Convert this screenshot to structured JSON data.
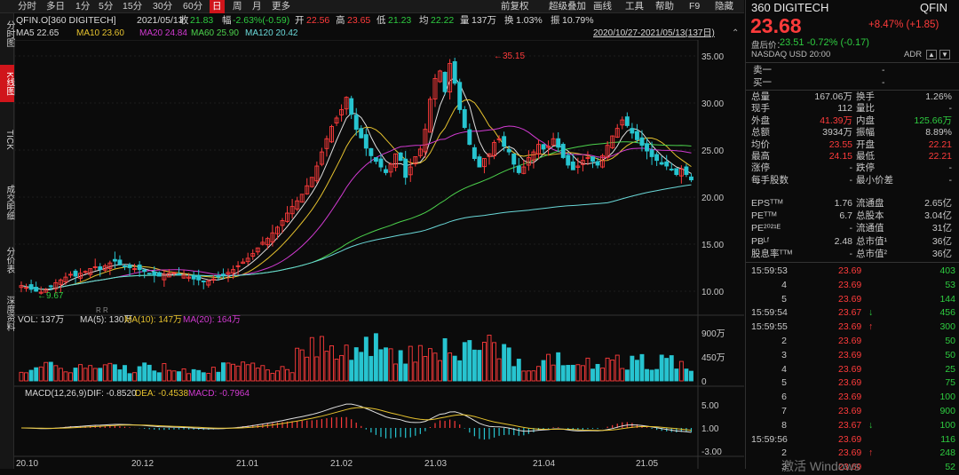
{
  "tabs": [
    "分时",
    "多日",
    "1分",
    "5分",
    "15分",
    "30分",
    "60分",
    "日",
    "周",
    "月",
    "更多"
  ],
  "active_tab": "日",
  "toolbar": [
    "前复权",
    "超级叠加",
    "画线",
    "工具",
    "帮助",
    "F9",
    "隐藏"
  ],
  "side_tabs": [
    "分时图",
    "K线图",
    "TICK",
    "成交明细",
    "分价表",
    "深度资料"
  ],
  "info": {
    "code": "QFIN.O[360 DIGITECH]",
    "date": "2021/05/13",
    "shou_l": "收",
    "shou": "21.83",
    "fu_l": "幅",
    "fu": "-2.63%(-0.59)",
    "kai_l": "开",
    "kai": "22.56",
    "gao_l": "高",
    "gao": "23.65",
    "di_l": "低",
    "di": "21.23",
    "jun_l": "均",
    "jun": "22.22",
    "liang_l": "量",
    "liang": "137万",
    "huan_l": "换",
    "huan": "1.03%",
    "zhen_l": "振",
    "zhen": "10.79%"
  },
  "ma": {
    "ma5": "MA5 22.65",
    "ma10": "MA10 23.60",
    "ma20": "MA20 24.84",
    "ma60": "MA60 25.90",
    "ma120": "MA120 20.42",
    "range": "2020/10/27-2021/05/13(137日)"
  },
  "vol": {
    "label": "VOL: 137万",
    "ma5": "MA(5): 130万",
    "ma10": "MA(10): 147万",
    "ma20": "MA(20): 164万"
  },
  "macd": {
    "label": "MACD(12,26,9)",
    "dif": "DIF: -0.8520",
    "dea": "DEA: -0.4538",
    "macd": "MACD: -0.7964"
  },
  "chart_data": {
    "type": "candlestick",
    "price_ticks": [
      "35.00",
      "30.00",
      "25.00",
      "20.00",
      "15.00",
      "10.00"
    ],
    "vol_ticks": [
      "900万",
      "450万",
      "0"
    ],
    "macd_ticks": [
      "5.00",
      "1.00",
      "-3.00"
    ],
    "date_ticks": [
      "20.10",
      "20.12",
      "21.01",
      "21.02",
      "21.03",
      "21.04",
      "21.05"
    ],
    "annotations": {
      "max": "35.15",
      "min": "9.67"
    },
    "closes": [
      10.6,
      10.4,
      10.2,
      10.0,
      9.9,
      10.2,
      10.5,
      10.9,
      11.2,
      11.5,
      11.8,
      11.6,
      11.9,
      12.1,
      12.4,
      12.6,
      12.3,
      12.7,
      13.0,
      13.2,
      12.8,
      12.6,
      12.5,
      12.4,
      12.3,
      12.1,
      11.9,
      11.7,
      11.6,
      11.8,
      11.9,
      12.0,
      11.8,
      11.7,
      11.5,
      11.3,
      11.2,
      11.0,
      11.1,
      11.3,
      11.5,
      11.7,
      12.0,
      12.3,
      12.7,
      13.1,
      13.5,
      14.0,
      14.6,
      15.2,
      15.6,
      16.2,
      16.8,
      17.5,
      18.3,
      19.0,
      19.6,
      20.3,
      21.2,
      22.1,
      23.3,
      24.8,
      26.2,
      27.5,
      28.4,
      29.3,
      30.6,
      28.8,
      27.2,
      26.3,
      25.2,
      24.4,
      23.8,
      23.2,
      22.6,
      23.5,
      24.6,
      23.9,
      22.1,
      23.2,
      24.3,
      25.1,
      27.2,
      30.4,
      32.6,
      33.4,
      31.2,
      34.2,
      32.1,
      29.3,
      27.4,
      25.6,
      24.1,
      23.2,
      24.1,
      24.6,
      25.8,
      26.2,
      25.4,
      24.8,
      23.5,
      22.6,
      23.2,
      24.2,
      24.8,
      25.6,
      25.1,
      25.4,
      26.2,
      25.3,
      24.2,
      23.4,
      22.9,
      23.3,
      23.9,
      24.2,
      23.8,
      23.4,
      24.4,
      25.5,
      26.5,
      27.3,
      28.2,
      27.6,
      26.8,
      26.1,
      25.5,
      24.9,
      24.3,
      23.9,
      23.5,
      23.3,
      22.9,
      22.4,
      23.0,
      22.4,
      21.83
    ],
    "ma_values": {
      "MA5": 22.65,
      "MA10": 23.6,
      "MA20": 24.84,
      "MA60": 25.9,
      "MA120": 20.42
    }
  },
  "right": {
    "name": "360 DIGITECH",
    "ticker": "QFIN",
    "price": "23.68",
    "change": "+8.47% (+1.85)",
    "after_label": "盘后价：",
    "after": "23.51 -0.72% (-0.17)",
    "market": "NASDAQ  USD  20:00",
    "adr": "ADR",
    "sell_label": "卖一",
    "sell": "-",
    "buy_label": "买一",
    "buy": "-",
    "stats": [
      [
        "总量",
        "167.06万",
        "换手",
        "1.26%"
      ],
      [
        "现手",
        "112",
        "量比",
        "-"
      ],
      [
        "外盘",
        "41.39万",
        "内盘",
        "125.66万"
      ],
      [
        "总额",
        "3934万",
        "振幅",
        "8.89%"
      ],
      [
        "均价",
        "23.55",
        "开盘",
        "22.21"
      ],
      [
        "最高",
        "24.15",
        "最低",
        "22.21"
      ],
      [
        "涨停",
        "-",
        "跌停",
        "-"
      ],
      [
        "每手股数",
        "-",
        "最小价差",
        "-"
      ]
    ],
    "fund": [
      [
        "EPSᵀᵀᴹ",
        "1.76",
        "流通盘",
        "2.65亿"
      ],
      [
        "PEᵀᵀᴹ",
        "6.7",
        "总股本",
        "3.04亿"
      ],
      [
        "PE²⁰²¹ᴱ",
        "-",
        "流通值",
        "31亿"
      ],
      [
        "PBᴸᶠ",
        "2.48",
        "总市值¹",
        "36亿"
      ],
      [
        "股息率ᵀᵀᴹ",
        "-",
        "总市值²",
        "36亿"
      ]
    ],
    "trades": [
      [
        "15:59:53",
        "23.69",
        "403",
        ""
      ],
      [
        "4",
        "23.69",
        "53",
        ""
      ],
      [
        "5",
        "23.69",
        "144",
        ""
      ],
      [
        "15:59:54",
        "23.67",
        "456",
        "down"
      ],
      [
        "15:59:55",
        "23.69",
        "300",
        "up"
      ],
      [
        "2",
        "23.69",
        "50",
        ""
      ],
      [
        "3",
        "23.69",
        "50",
        ""
      ],
      [
        "4",
        "23.69",
        "25",
        ""
      ],
      [
        "5",
        "23.69",
        "75",
        ""
      ],
      [
        "6",
        "23.69",
        "100",
        ""
      ],
      [
        "7",
        "23.69",
        "900",
        ""
      ],
      [
        "8",
        "23.67",
        "100",
        "down"
      ],
      [
        "15:59:56",
        "23.69",
        "116",
        ""
      ],
      [
        "2",
        "23.69",
        "248",
        "up"
      ],
      [
        "3",
        "23.69",
        "52",
        ""
      ]
    ],
    "watermark": "激活 Windows"
  }
}
